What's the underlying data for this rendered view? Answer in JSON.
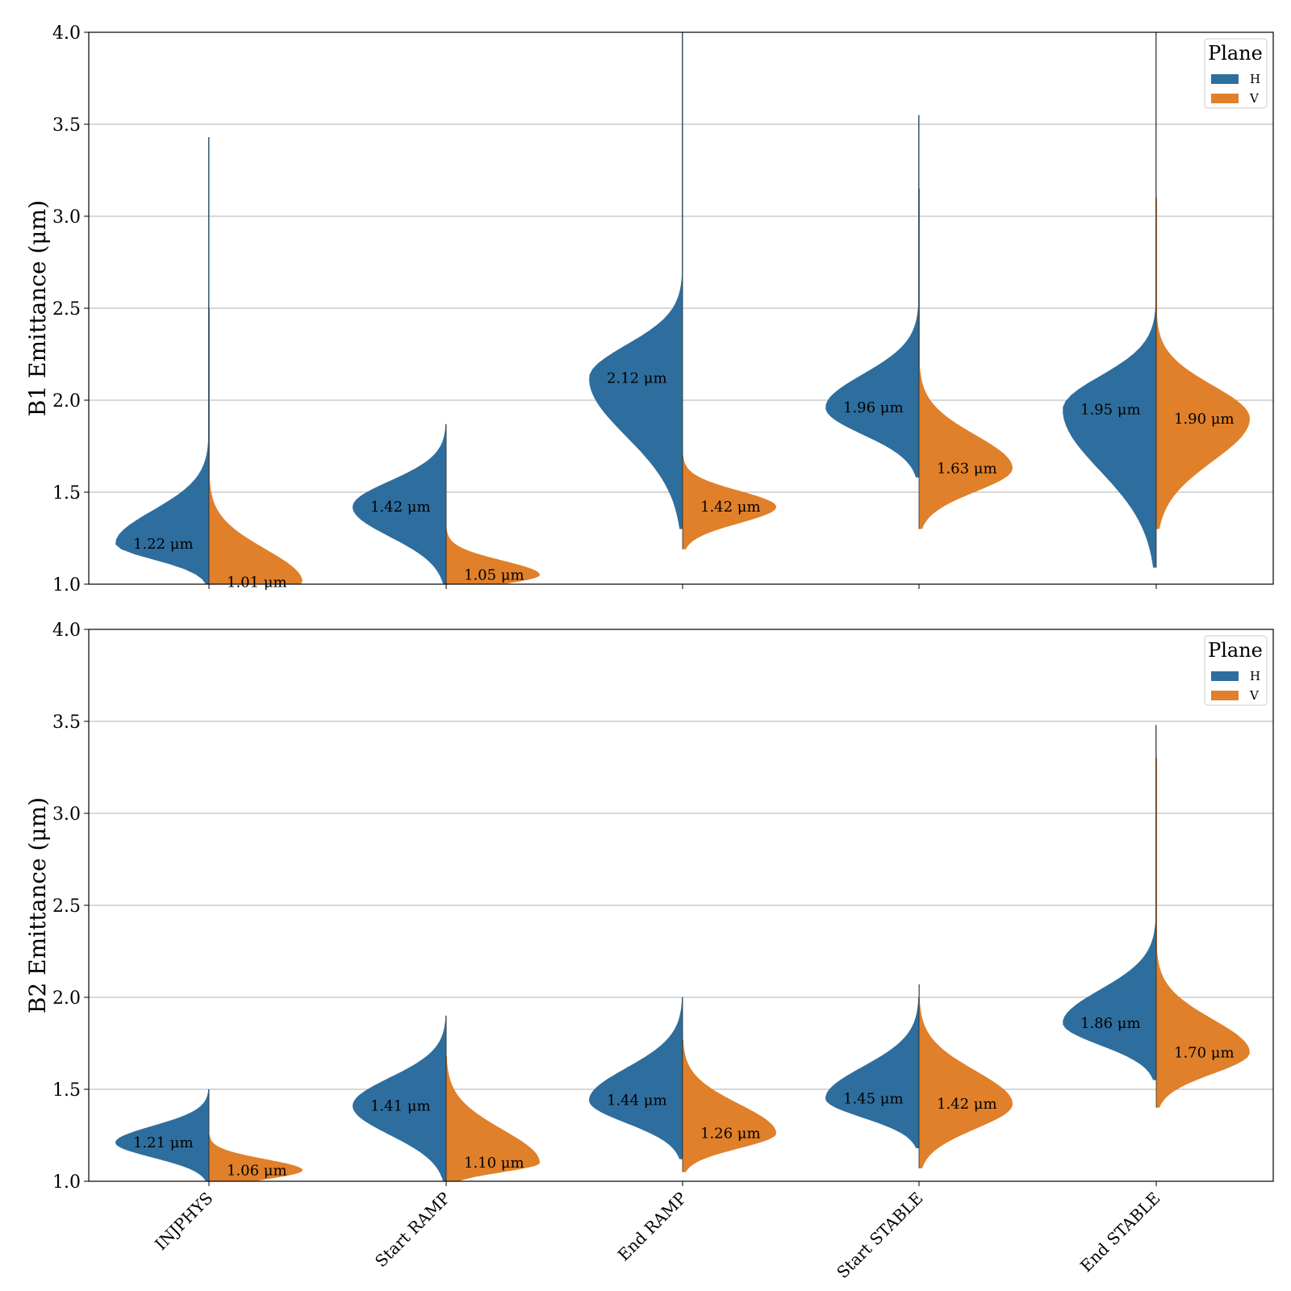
{
  "chart_data": [
    {
      "type": "violin",
      "ylabel": "B1 Emittance (μm)",
      "ylim": [
        1.0,
        4.0
      ],
      "yticks": [
        "1.0",
        "1.5",
        "2.0",
        "2.5",
        "3.0",
        "3.5",
        "4.0"
      ],
      "grid": "horizontal",
      "legend": {
        "title": "Plane",
        "placement": "top-right",
        "entries": [
          "H",
          "V"
        ]
      },
      "colors": {
        "H": "#2e6e9e",
        "V": "#e0802a"
      },
      "categories": [
        "INJPHYS",
        "Start RAMP",
        "End RAMP",
        "Start STABLE",
        "End STABLE"
      ],
      "series": [
        {
          "name": "H",
          "medians": [
            1.22,
            1.42,
            2.12,
            1.96,
            1.95
          ],
          "labels": [
            "1.22 μm",
            "1.42 μm",
            "2.12 μm",
            "1.96 μm",
            "1.95 μm"
          ],
          "ranges": [
            [
              1.0,
              3.43
            ],
            [
              1.0,
              1.87
            ],
            [
              1.3,
              4.0
            ],
            [
              1.58,
              3.55
            ],
            [
              1.09,
              4.0
            ]
          ]
        },
        {
          "name": "V",
          "medians": [
            1.01,
            1.05,
            1.42,
            1.63,
            1.9
          ],
          "labels": [
            "1.01 μm",
            "1.05 μm",
            "1.42 μm",
            "1.63 μm",
            "1.90 μm"
          ],
          "ranges": [
            [
              1.0,
              2.5
            ],
            [
              1.0,
              1.3
            ],
            [
              1.19,
              1.7
            ],
            [
              1.3,
              3.15
            ],
            [
              1.3,
              3.1
            ]
          ]
        }
      ]
    },
    {
      "type": "violin",
      "ylabel": "B2 Emittance (μm)",
      "ylim": [
        1.0,
        4.0
      ],
      "yticks": [
        "1.0",
        "1.5",
        "2.0",
        "2.5",
        "3.0",
        "3.5",
        "4.0"
      ],
      "grid": "horizontal",
      "legend": {
        "title": "Plane",
        "placement": "top-right",
        "entries": [
          "H",
          "V"
        ]
      },
      "colors": {
        "H": "#2e6e9e",
        "V": "#e0802a"
      },
      "categories": [
        "INJPHYS",
        "Start RAMP",
        "End RAMP",
        "Start STABLE",
        "End STABLE"
      ],
      "series": [
        {
          "name": "H",
          "medians": [
            1.21,
            1.41,
            1.44,
            1.45,
            1.86
          ],
          "labels": [
            "1.21 μm",
            "1.41 μm",
            "1.44 μm",
            "1.45 μm",
            "1.86 μm"
          ],
          "ranges": [
            [
              1.0,
              1.5
            ],
            [
              1.0,
              1.9
            ],
            [
              1.12,
              2.0
            ],
            [
              1.18,
              2.0
            ],
            [
              1.55,
              3.48
            ]
          ]
        },
        {
          "name": "V",
          "medians": [
            1.06,
            1.1,
            1.26,
            1.42,
            1.7
          ],
          "labels": [
            "1.06 μm",
            "1.10 μm",
            "1.26 μm",
            "1.42 μm",
            "1.70 μm"
          ],
          "ranges": [
            [
              1.0,
              1.25
            ],
            [
              1.0,
              1.68
            ],
            [
              1.05,
              1.77
            ],
            [
              1.07,
              2.07
            ],
            [
              1.4,
              3.3
            ]
          ]
        }
      ]
    }
  ]
}
